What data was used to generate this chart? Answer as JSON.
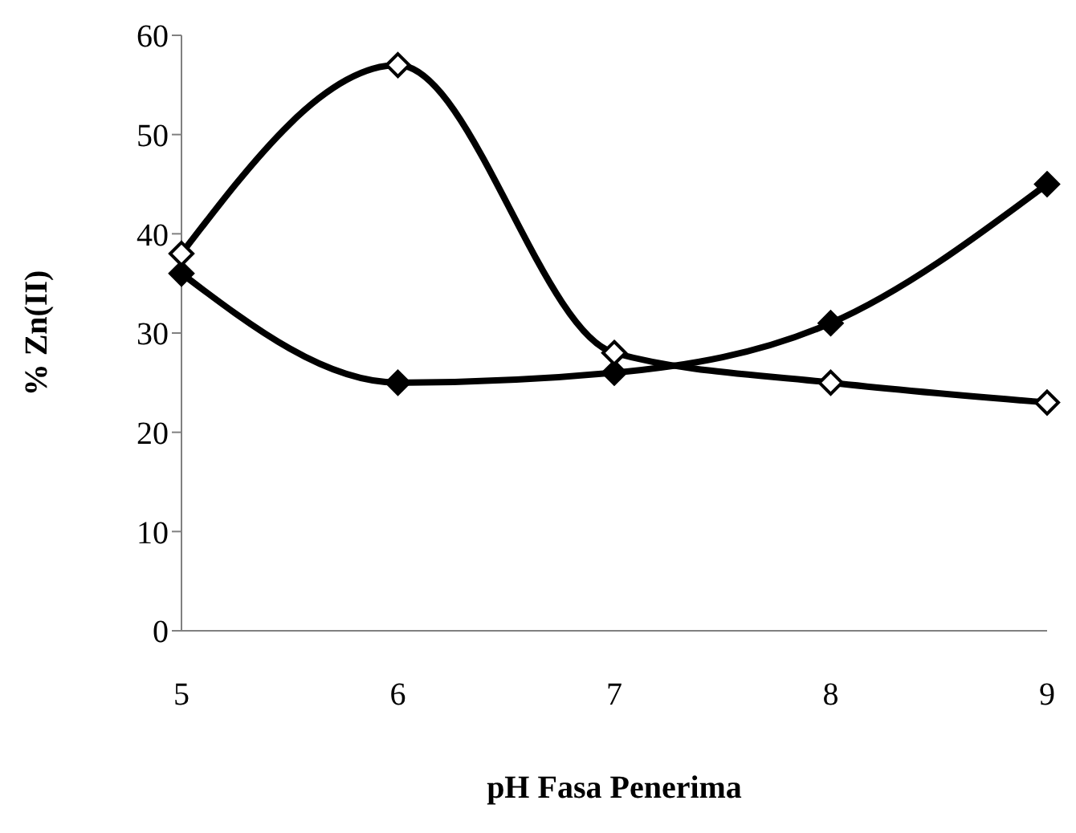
{
  "chart_data": {
    "type": "line",
    "xlabel": "pH Fasa Penerima",
    "ylabel": "% Zn(II)",
    "categories": [
      "5",
      "6",
      "7",
      "8",
      "9"
    ],
    "series": [
      {
        "color": "#000000",
        "values": [
          36,
          25,
          26,
          31,
          45
        ]
      },
      {
        "color": "#000000",
        "values": [
          38,
          57,
          28,
          25,
          23
        ]
      }
    ],
    "ylim": [
      0,
      60
    ],
    "yticks": [
      0,
      10,
      20,
      30,
      40,
      50,
      60
    ],
    "marker": "diamond",
    "line_style": "solid",
    "grid": false,
    "legend": false
  }
}
